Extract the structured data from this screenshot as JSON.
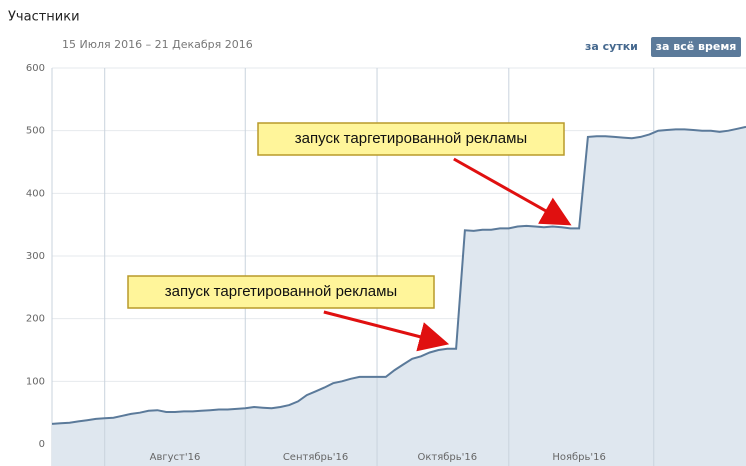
{
  "chart_data": {
    "type": "area",
    "title": "Участники",
    "subtitle": "15 Июля 2016 – 21 Декабря 2016",
    "categories": [
      null,
      null,
      null,
      null,
      null,
      null,
      null,
      null,
      null,
      null,
      null,
      null,
      null,
      null,
      "Август'16",
      null,
      null,
      null,
      null,
      null,
      null,
      null,
      null,
      null,
      null,
      null,
      null,
      null,
      null,
      null,
      "Сентябрь'16",
      null,
      null,
      null,
      null,
      null,
      null,
      null,
      null,
      null,
      null,
      null,
      null,
      null,
      null,
      "Октябрь'16",
      null,
      null,
      null,
      null,
      null,
      null,
      null,
      null,
      null,
      null,
      null,
      null,
      null,
      null,
      "Ноябрь'16",
      null,
      null,
      null,
      null,
      null,
      null,
      null,
      null,
      null,
      null,
      null,
      null,
      null,
      null,
      null,
      null,
      null,
      null,
      null
    ],
    "values": [
      32,
      33,
      34,
      36,
      38,
      40,
      41,
      42,
      45,
      48,
      50,
      53,
      54,
      51,
      51,
      52,
      52,
      53,
      54,
      55,
      55,
      56,
      57,
      59,
      58,
      57,
      59,
      62,
      68,
      78,
      84,
      90,
      97,
      100,
      104,
      107,
      107,
      107,
      107,
      118,
      127,
      136,
      140,
      146,
      150,
      152,
      152,
      341,
      340,
      342,
      342,
      344,
      344,
      347,
      348,
      347,
      346,
      347,
      346,
      344,
      344,
      490,
      491,
      491,
      490,
      489,
      488,
      490,
      494,
      500,
      501,
      502,
      502,
      501,
      500,
      500,
      498,
      500,
      503,
      506
    ],
    "color": "#5b7a9a",
    "fill": "#dfe7ef",
    "ylim": [
      0,
      600
    ],
    "yticks": [
      0,
      100,
      200,
      300,
      400,
      500,
      600
    ],
    "grid": true,
    "annotations": [
      {
        "text": "запуск таргетированной рекламы",
        "index": 59
      },
      {
        "text": "запуск таргетированной рекламы",
        "index": 45
      }
    ]
  },
  "controls": [
    "за сутки",
    "за всё время"
  ]
}
